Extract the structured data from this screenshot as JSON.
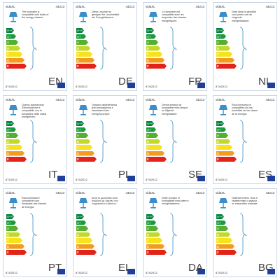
{
  "brand": "vidaXL",
  "code": "44213",
  "regulation": "874/2012",
  "classes": [
    "A++",
    "A+",
    "A",
    "B",
    "C",
    "D",
    "E"
  ],
  "labels": [
    {
      "lang": "EN",
      "text": "The luminaire is compatible with bulbs of the energy classes:"
    },
    {
      "lang": "DE",
      "text": "Diese Leuchte ist geeignet für Leuchtmittel der Energieklassen:"
    },
    {
      "lang": "FR",
      "text": "Ce luminaire est compatible avec les ampoules des classes énergétiques:"
    },
    {
      "lang": "NL",
      "text": "Deze lamp is geschikt voor peren van de volgende energieklassen:"
    },
    {
      "lang": "IT",
      "text": "Questo apparecchio d'illuminazione è compatibile con le lampadine delle classi energetiche:"
    },
    {
      "lang": "PL",
      "text": "Oprawa oświetleniowa jest kompatybilna z żarówkami klas energetycznych:"
    },
    {
      "lang": "SE",
      "text": "Denna armatur är kompatibel med lampor av följande energiklasser:"
    },
    {
      "lang": "ES",
      "text": "Esta luminaria es compatible con las bombillas de las clases de la energía:"
    },
    {
      "lang": "PT",
      "text": "Esta luminária é compatível com lâmpadas das classes de energia:"
    },
    {
      "lang": "EL",
      "text": "Αυτό το φωτιστικό είναι συμβατό με λάμπες των ενεργειακών κλάσεων:"
    },
    {
      "lang": "DA",
      "text": "Dette armatur er kompatibelt med pærer i energiklasserne:"
    },
    {
      "lang": "BG",
      "text": "Осветителното тяло е съвместимо с крушки от енергийни класове:"
    }
  ]
}
